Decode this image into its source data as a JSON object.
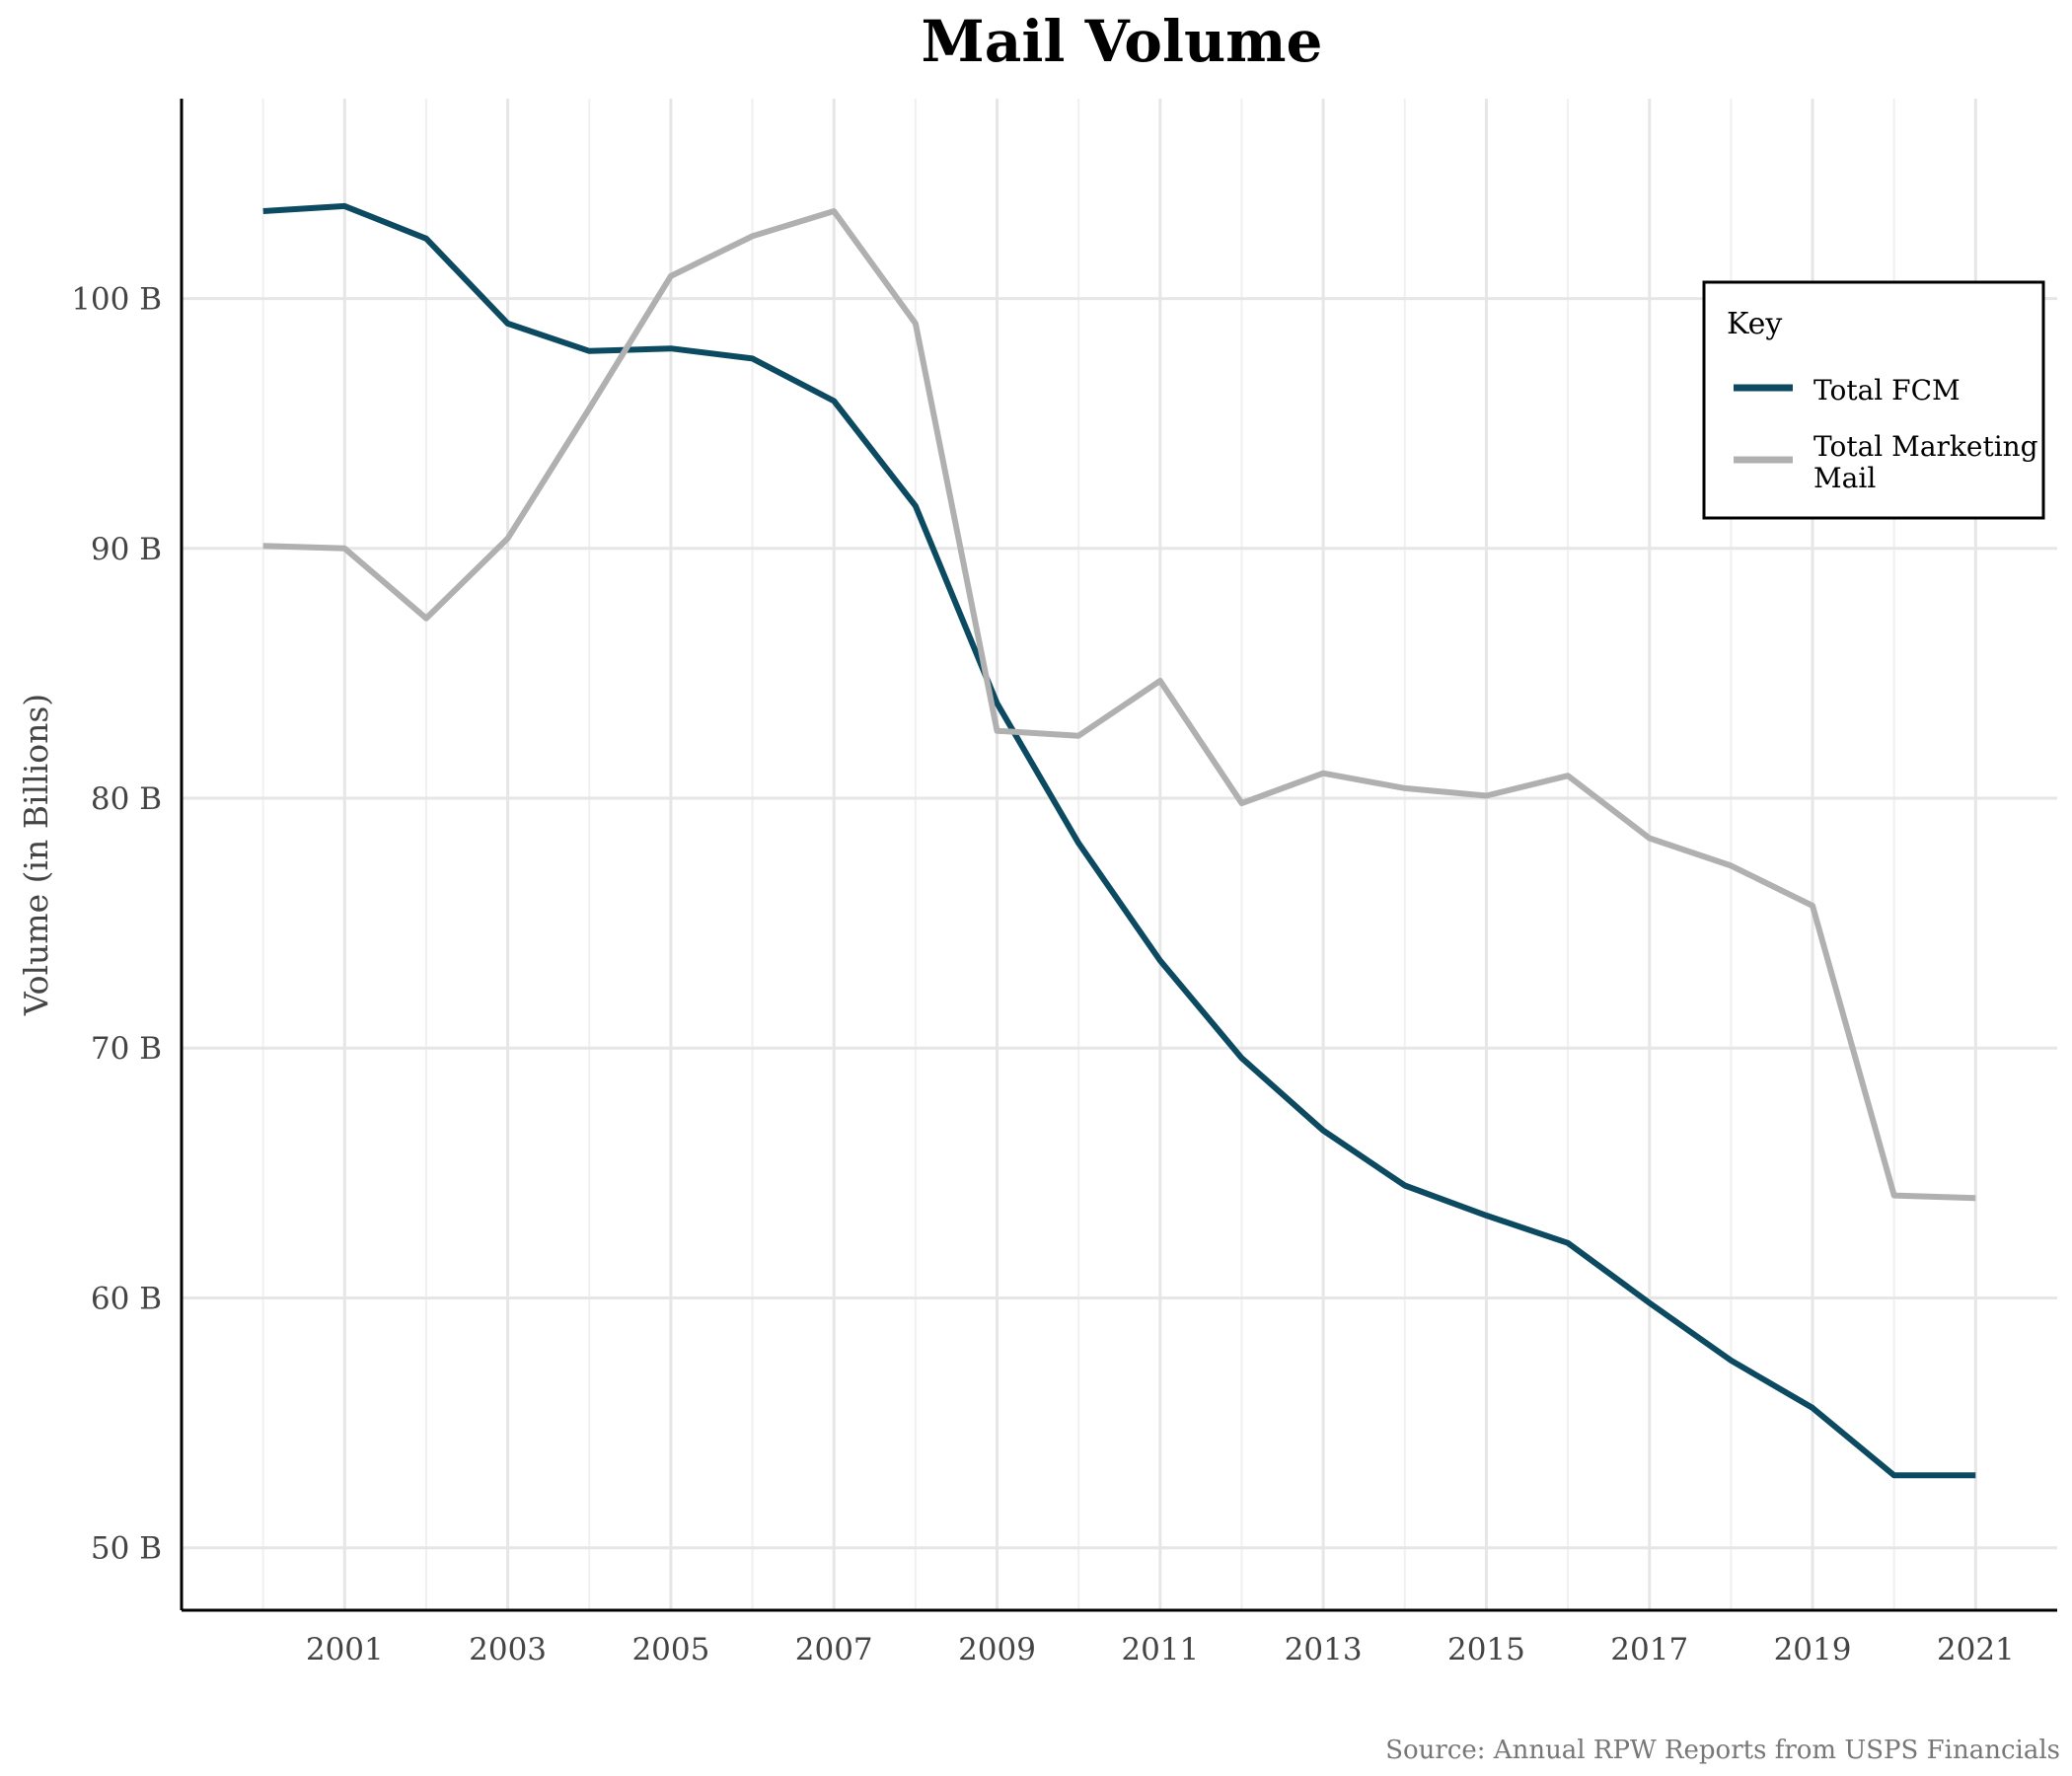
{
  "chart_data": {
    "type": "line",
    "title": "Mail Volume",
    "xlabel": "",
    "ylabel": "Volume (in Billions)",
    "caption": "Source: Annual RPW Reports from USPS Financials",
    "x": [
      2000,
      2001,
      2002,
      2003,
      2004,
      2005,
      2006,
      2007,
      2008,
      2009,
      2010,
      2011,
      2012,
      2013,
      2014,
      2015,
      2016,
      2017,
      2018,
      2019,
      2020,
      2021
    ],
    "xlim": [
      1999,
      2022
    ],
    "ylim": [
      47.5,
      108
    ],
    "x_ticks": [
      2001,
      2003,
      2005,
      2007,
      2009,
      2011,
      2013,
      2015,
      2017,
      2019,
      2021
    ],
    "x_tick_labels": [
      "2001",
      "2003",
      "2005",
      "2007",
      "2009",
      "2011",
      "2013",
      "2015",
      "2017",
      "2019",
      "2021"
    ],
    "y_ticks": [
      50,
      60,
      70,
      80,
      90,
      100
    ],
    "y_tick_labels": [
      "50 B",
      "60 B",
      "70 B",
      "80 B",
      "90 B",
      "100 B"
    ],
    "grid": true,
    "legend": {
      "title": "Key",
      "position": "top-right"
    },
    "series": [
      {
        "name": "Total FCM",
        "color": "#0b4a60",
        "values": [
          103.5,
          103.7,
          102.4,
          99.0,
          97.9,
          98.0,
          97.6,
          95.9,
          91.7,
          83.8,
          78.2,
          73.5,
          69.6,
          66.7,
          64.5,
          63.3,
          62.2,
          59.8,
          57.5,
          55.6,
          52.9,
          52.9
        ]
      },
      {
        "name": "Total Marketing\nMail",
        "name_lines": [
          "Total Marketing",
          "Mail"
        ],
        "color": "#b0b0b0",
        "values": [
          90.1,
          90.0,
          87.2,
          90.4,
          95.6,
          100.9,
          102.5,
          103.5,
          99.0,
          82.7,
          82.5,
          84.7,
          79.8,
          81.0,
          80.4,
          80.1,
          80.9,
          78.4,
          77.3,
          75.7,
          64.1,
          64.0
        ]
      }
    ]
  }
}
